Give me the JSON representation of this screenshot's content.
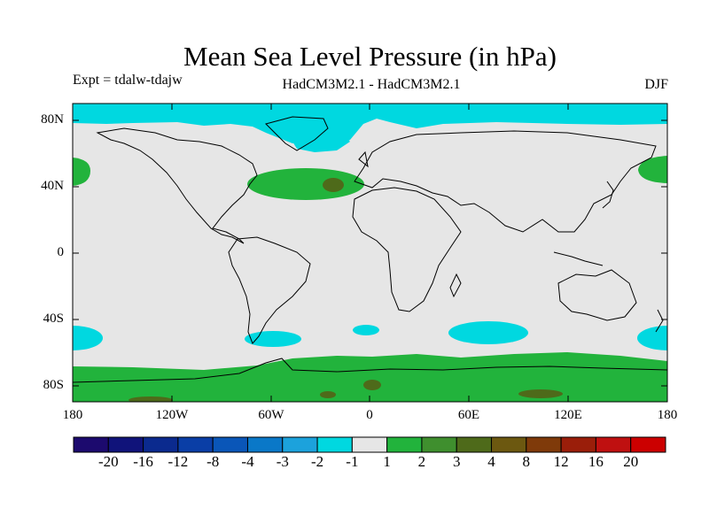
{
  "title": "Mean Sea Level Pressure (in hPa)",
  "experiment": "Expt = tdalw-tdajw",
  "model": "HadCM3M2.1 - HadCM3M2.1",
  "season": "DJF",
  "lat_ticks": [
    "80N",
    "40N",
    "0",
    "40S",
    "80S"
  ],
  "lon_ticks": [
    "180",
    "120W",
    "60W",
    "0",
    "60E",
    "120E",
    "180"
  ],
  "colorbar": {
    "labels": [
      "-20",
      "-16",
      "-12",
      "-8",
      "-4",
      "-3",
      "-2",
      "-1",
      "1",
      "2",
      "3",
      "4",
      "8",
      "12",
      "16",
      "20"
    ],
    "colors": [
      "#1c0a6e",
      "#10137a",
      "#0b2a8e",
      "#0a3ea6",
      "#0a56b8",
      "#0a78c8",
      "#1ca2dc",
      "#00d8e0",
      "#e6e6e6",
      "#22b33c",
      "#3f8f2e",
      "#4e6a1a",
      "#6c5810",
      "#7f3a0a",
      "#9a1e0a",
      "#bf1010",
      "#cc0000"
    ]
  },
  "colors": {
    "neutral": "#e6e6e6",
    "negative_light": "#00d8e0",
    "positive_light": "#22b33c",
    "positive_mid": "#4e6a1a"
  }
}
